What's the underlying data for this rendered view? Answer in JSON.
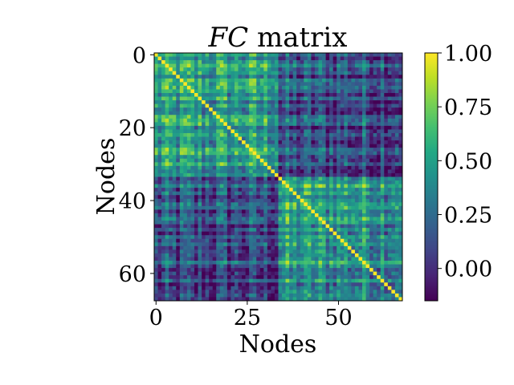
{
  "chart_data": {
    "type": "heatmap",
    "title_italic": "FC",
    "title_rest": " matrix",
    "xlabel": "Nodes",
    "ylabel": "Nodes",
    "n_nodes": 68,
    "x_ticks": [
      0,
      25,
      50
    ],
    "y_ticks": [
      0,
      20,
      40,
      60
    ],
    "colorbar": {
      "range": [
        -0.15,
        1.0
      ],
      "ticks": [
        1.0,
        0.75,
        0.5,
        0.25,
        0.0
      ],
      "tick_labels": [
        "1.00",
        "0.75",
        "0.50",
        "0.25",
        "0.00"
      ]
    },
    "colormap": "viridis",
    "diagonal_value": 1.0,
    "typical_block_ranges": {
      "nodes_0_to_33_within": [
        0.25,
        0.75
      ],
      "nodes_34_to_67_within": [
        0.25,
        0.75
      ],
      "between_blocks": [
        -0.1,
        0.45
      ]
    }
  }
}
